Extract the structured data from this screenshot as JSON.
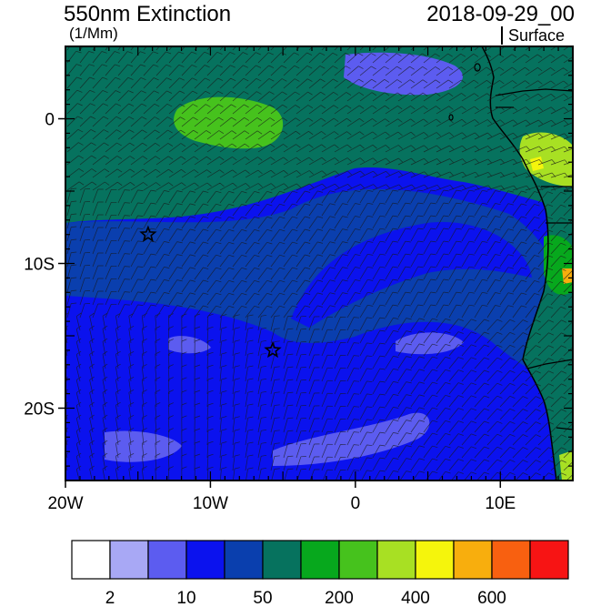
{
  "title": "550nm Extinction",
  "units": "(1/Mm)",
  "datetime": "2018-09-29_00",
  "level": "Surface",
  "map": {
    "lon_range": [
      -20,
      15
    ],
    "lat_range": [
      -25,
      5
    ],
    "lon_ticks": [
      {
        "lon": -20,
        "label": "20W"
      },
      {
        "lon": -10,
        "label": "10W"
      },
      {
        "lon": 0,
        "label": "0"
      },
      {
        "lon": 10,
        "label": "10E"
      }
    ],
    "lat_ticks": [
      {
        "lat": 0,
        "label": "0"
      },
      {
        "lat": -10,
        "label": "10S"
      },
      {
        "lat": -20,
        "label": "20S"
      }
    ],
    "markers": [
      {
        "name": "star",
        "lon": -14.3,
        "lat": -8.0
      },
      {
        "name": "star",
        "lon": -5.7,
        "lat": -16.0
      }
    ],
    "overlay": "wind-barbs"
  },
  "colorbar": {
    "colors": [
      "#ffffff",
      "#a8a8f5",
      "#5c5cf0",
      "#0b12ee",
      "#0a3fae",
      "#06725e",
      "#07a81d",
      "#46c21d",
      "#a8e023",
      "#f5f50c",
      "#f8ae0d",
      "#f86010",
      "#f71414"
    ],
    "tick_labels": [
      {
        "after_box": 1,
        "label": "2"
      },
      {
        "after_box": 3,
        "label": "10"
      },
      {
        "after_box": 5,
        "label": "50"
      },
      {
        "after_box": 7,
        "label": "200"
      },
      {
        "after_box": 9,
        "label": "400"
      },
      {
        "after_box": 11,
        "label": "600"
      }
    ]
  }
}
